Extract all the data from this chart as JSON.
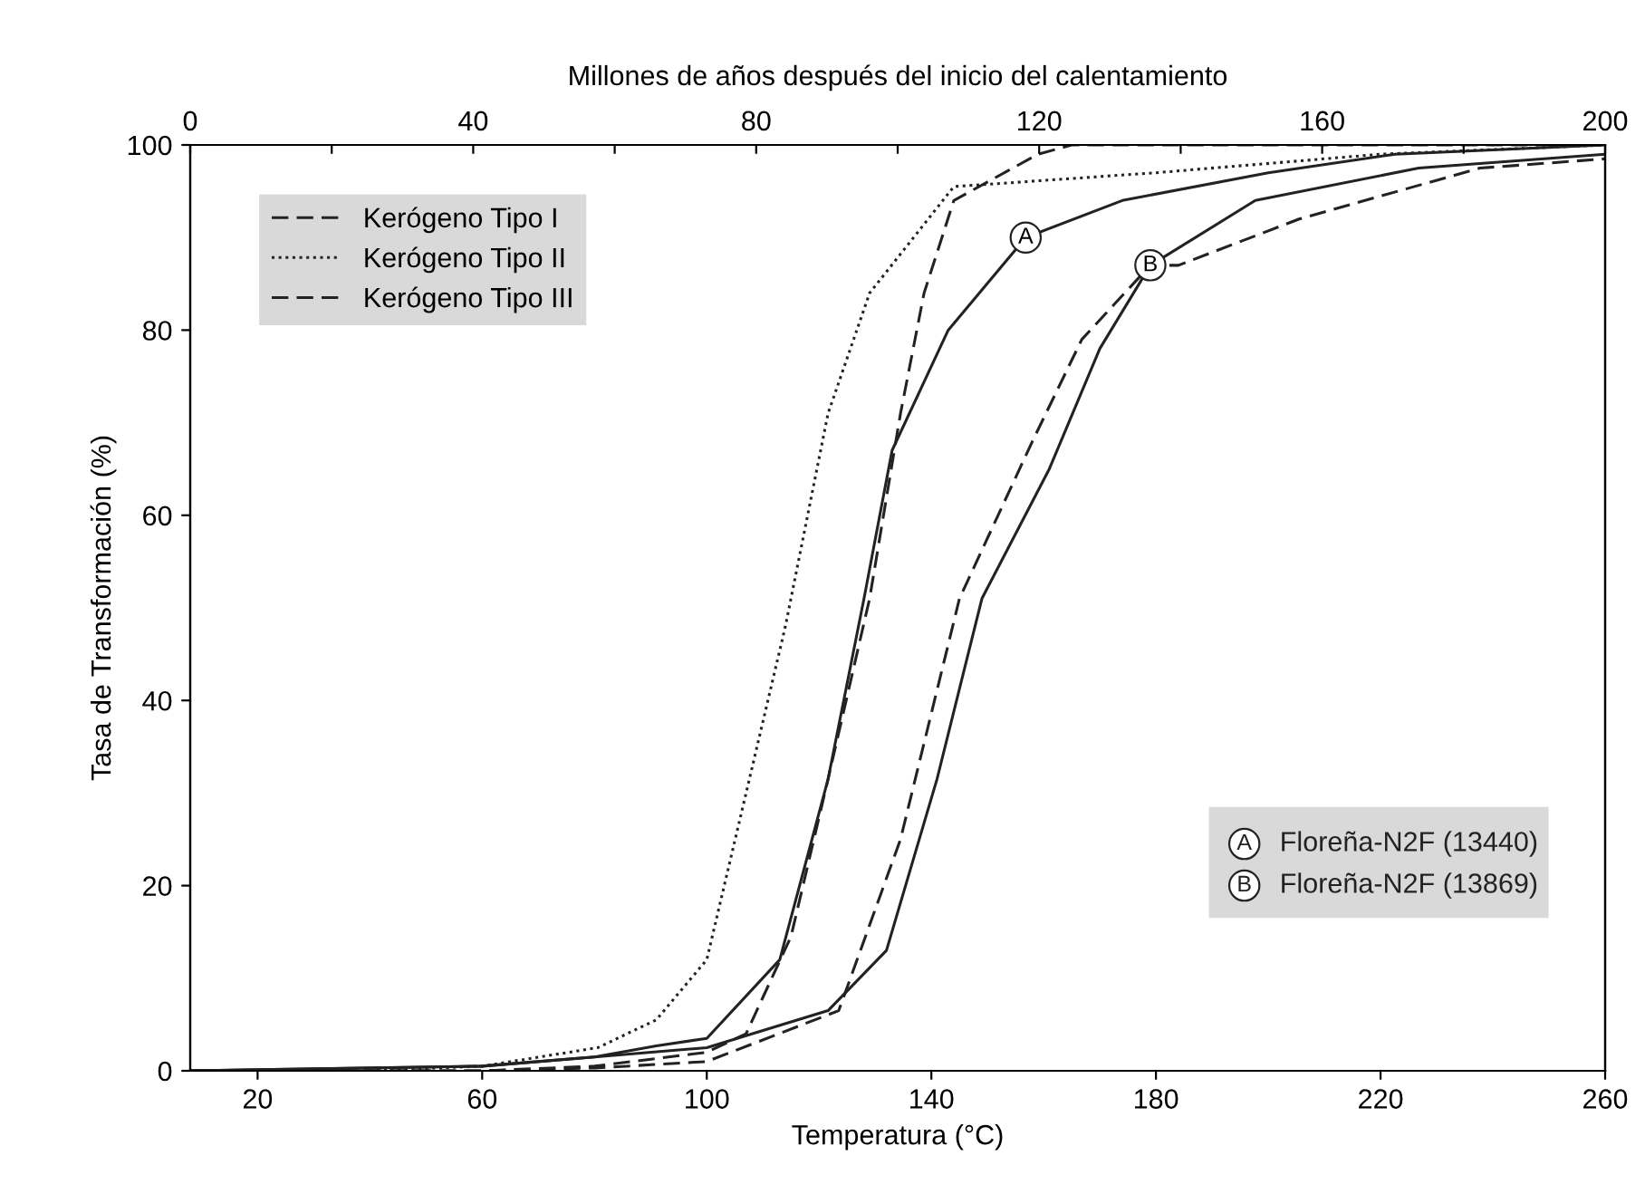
{
  "chart_data": {
    "type": "line",
    "x2label": "Millones de años después del inicio del calentamiento",
    "xlabel": "Temperatura (°C)",
    "ylabel": "Tasa de Transformación (%)",
    "xlim": [
      8,
      260
    ],
    "xticks": [
      20,
      60,
      100,
      140,
      180,
      220,
      260
    ],
    "x2lim": [
      0,
      200
    ],
    "x2ticks": [
      0,
      {
        "value": 20,
        "label": null
      },
      40,
      {
        "value": 60,
        "label": null
      },
      80,
      {
        "value": 100,
        "label": null
      },
      120,
      {
        "value": 140,
        "label": null
      },
      160,
      {
        "value": 180,
        "label": null
      },
      200
    ],
    "ylim": [
      0,
      100
    ],
    "yticks": [
      0,
      20,
      40,
      60,
      80,
      100
    ],
    "grid": false,
    "legend": "top left",
    "marker": "none",
    "series": [
      {
        "name": "Kerógeno Tipo I",
        "color": "#222222",
        "line_style": "dashed",
        "x": [
          8,
          60,
          80,
          100,
          107,
          115,
          121.6,
          129,
          134.5,
          138.7,
          144,
          159,
          165,
          260
        ],
        "values": [
          0,
          0,
          0.5,
          2,
          4,
          14.5,
          31.5,
          51,
          71,
          84,
          94,
          99,
          100,
          100
        ]
      },
      {
        "name": "Kerógeno Tipo II",
        "color": "#222222",
        "line_style": "dotted",
        "x": [
          8,
          40,
          60,
          80.6,
          91,
          100,
          114,
          121.6,
          129,
          144,
          180,
          220,
          260
        ],
        "values": [
          0,
          0,
          0.5,
          2.5,
          5.5,
          12,
          48,
          71,
          84,
          95.5,
          97,
          99,
          100
        ]
      },
      {
        "name": "Kerógeno Tipo III",
        "color": "#222222",
        "line_style": "dashed",
        "x": [
          8,
          60,
          80,
          100,
          123.5,
          134.5,
          145,
          158,
          166.8,
          179,
          184,
          205.5,
          237.7,
          260
        ],
        "values": [
          0,
          0,
          0.3,
          1,
          6.5,
          25,
          51,
          68,
          79,
          87,
          87,
          92,
          97.5,
          98.5
        ]
      },
      {
        "name": "Floreña-N2F (13440)",
        "color": "#222222",
        "line_style": "solid",
        "x": [
          8,
          60,
          80,
          91,
          100,
          113,
          121.6,
          128,
          133,
          143,
          156.8,
          174,
          200,
          222.6,
          260
        ],
        "values": [
          0,
          0.5,
          1.5,
          2.7,
          3.5,
          12,
          31.5,
          51,
          67,
          80,
          90,
          94,
          97,
          99,
          100
        ]
      },
      {
        "name": "Floreña-N2F (13869)",
        "color": "#222222",
        "line_style": "solid",
        "x": [
          8,
          60,
          80,
          100,
          121.6,
          132,
          141,
          149,
          161,
          170,
          179,
          197.7,
          226.8,
          260
        ],
        "values": [
          0,
          0.5,
          1.5,
          2.5,
          6.5,
          13,
          31.5,
          51,
          65,
          78,
          87,
          94,
          97.5,
          99
        ]
      }
    ],
    "annotations": [
      {
        "text": "A",
        "x": 156.8,
        "y": 90
      },
      {
        "text": "B",
        "x": 179,
        "y": 87
      }
    ]
  }
}
